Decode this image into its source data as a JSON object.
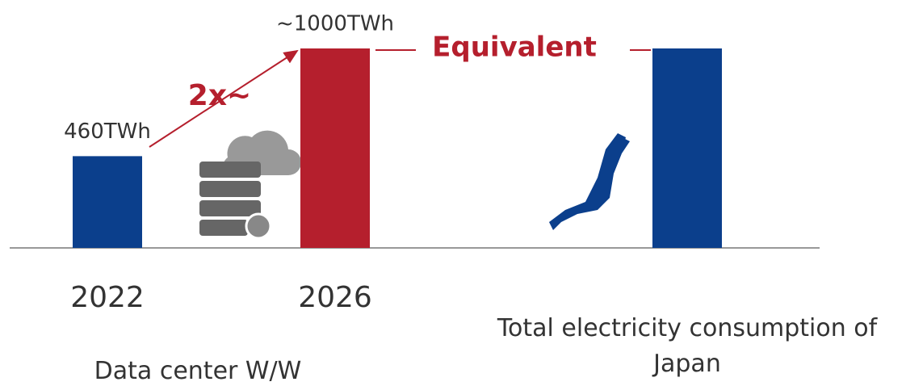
{
  "chart_data": {
    "type": "bar",
    "categories": [
      "2022",
      "2026",
      "Total electricity consumption of Japan"
    ],
    "values": [
      460,
      1000,
      1000
    ],
    "value_labels": [
      "460TWh",
      "~1000TWh",
      null
    ],
    "colors": [
      "#0b3f8c",
      "#b51f2d",
      "#0b3f8c"
    ],
    "ylim": [
      0,
      1000
    ],
    "group_label": "Data center W/W",
    "annotations": {
      "growth": "2x~",
      "equivalent": "Equivalent"
    }
  }
}
